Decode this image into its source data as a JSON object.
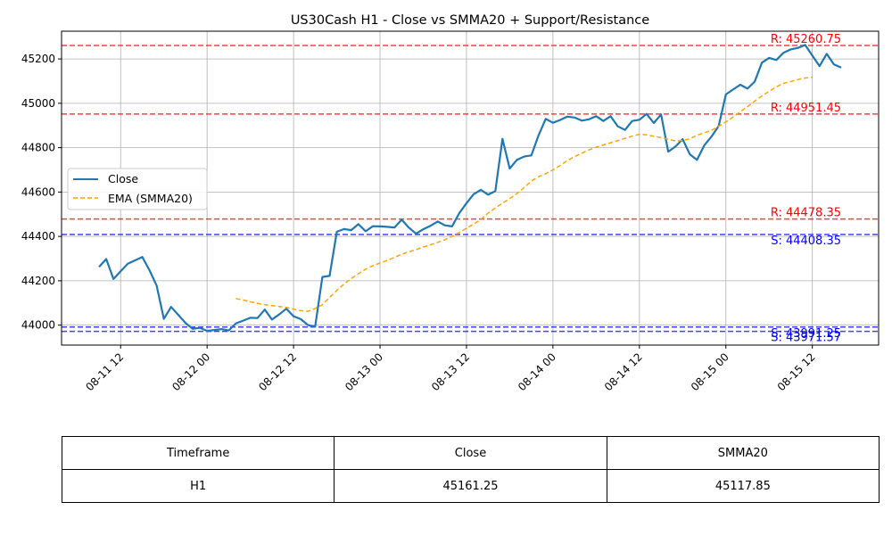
{
  "chart_data": {
    "type": "line",
    "title": "US30Cash H1 - Close vs SMMA20 + Support/Resistance",
    "xlabel": "",
    "ylabel": "",
    "x_ticks": [
      "08-11 12",
      "08-12 00",
      "08-12 12",
      "08-13 00",
      "08-13 12",
      "08-14 00",
      "08-14 12",
      "08-15 00",
      "08-15 12"
    ],
    "y_ticks": [
      44000,
      44200,
      44400,
      44600,
      44800,
      45000,
      45200
    ],
    "ylim": [
      43910,
      45325
    ],
    "grid": true,
    "legend_position": "center-left",
    "series": [
      {
        "name": "Close",
        "style": "solid",
        "color": "#1f77b4",
        "values": [
          44262,
          44298,
          44208,
          44243,
          44277,
          44292,
          44307,
          44248,
          44178,
          44028,
          44082,
          44046,
          44010,
          43983,
          43988,
          43974,
          43978,
          43982,
          43976,
          44008,
          44020,
          44033,
          44032,
          44070,
          44025,
          44048,
          44074,
          44040,
          44027,
          44000,
          43993,
          44217,
          44222,
          44421,
          44433,
          44428,
          44455,
          44423,
          44446,
          44445,
          44443,
          44440,
          44475,
          44440,
          44412,
          44432,
          44448,
          44467,
          44450,
          44445,
          44505,
          44550,
          44590,
          44610,
          44588,
          44604,
          44840,
          44706,
          44745,
          44760,
          44765,
          44855,
          44930,
          44912,
          44925,
          44940,
          44936,
          44922,
          44928,
          44942,
          44920,
          44942,
          44896,
          44880,
          44920,
          44926,
          44952,
          44911,
          44950,
          44782,
          44805,
          44838,
          44770,
          44745,
          44810,
          44850,
          44898,
          45040,
          45062,
          45084,
          45066,
          45098,
          45183,
          45205,
          45195,
          45228,
          45243,
          45250,
          45263,
          45215,
          45168,
          45223,
          45175,
          45161
        ]
      },
      {
        "name": "EMA (SMMA20)",
        "style": "dashed",
        "color": "#ffa500",
        "start_index": 19,
        "values": [
          44120,
          44113,
          44105,
          44098,
          44092,
          44088,
          44084,
          44080,
          44072,
          44065,
          44062,
          44075,
          44092,
          44125,
          44157,
          44185,
          44210,
          44232,
          44252,
          44268,
          44280,
          44292,
          44305,
          44320,
          44330,
          44340,
          44352,
          44362,
          44373,
          44385,
          44400,
          44418,
          44437,
          44455,
          44476,
          44505,
          44528,
          44550,
          44570,
          44593,
          44620,
          44650,
          44669,
          44683,
          44700,
          44720,
          44742,
          44760,
          44775,
          44790,
          44802,
          44812,
          44822,
          44832,
          44842,
          44852,
          44860,
          44858,
          44851,
          44846,
          44838,
          44830,
          44832,
          44840,
          44856,
          44867,
          44878,
          44896,
          44916,
          44938,
          44962,
          44985,
          45010,
          45033,
          45054,
          45074,
          45090,
          45098,
          45107,
          45114,
          45118
        ]
      }
    ],
    "levels": [
      {
        "kind": "resistance",
        "label": "R: 45260.75",
        "value": 45260.75,
        "color": "#ff0000"
      },
      {
        "kind": "resistance",
        "label": "R: 44951.45",
        "value": 44951.45,
        "color": "#ff0000"
      },
      {
        "kind": "resistance",
        "label": "R: 44478.35",
        "value": 44478.35,
        "color": "#ff0000"
      },
      {
        "kind": "support",
        "label": "S: 44408.35",
        "value": 44408.35,
        "color": "#0000ff"
      },
      {
        "kind": "support",
        "label": "S: 43991.25",
        "value": 43991.25,
        "color": "#0000ff"
      },
      {
        "kind": "support",
        "label": "S: 43971.57",
        "value": 43971.57,
        "color": "#0000ff"
      }
    ]
  },
  "table": {
    "headers": [
      "Timeframe",
      "Close",
      "SMMA20"
    ],
    "row": [
      "H1",
      "45161.25",
      "45117.85"
    ]
  }
}
